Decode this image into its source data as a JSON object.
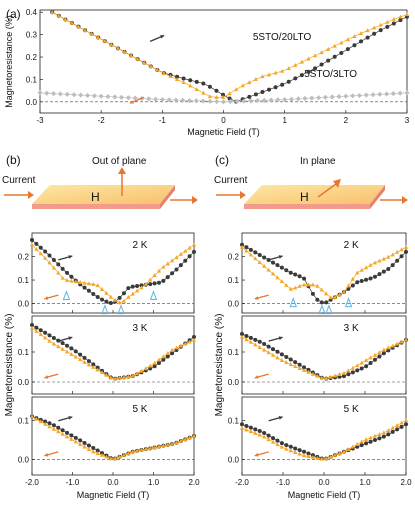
{
  "panels": [
    {
      "label": "(a)"
    },
    {
      "label": "(b)",
      "orientation": "Out of plane",
      "current": "Current",
      "field": "H"
    },
    {
      "label": "(c)",
      "orientation": "In plane",
      "current": "Current",
      "field": "H"
    }
  ],
  "chart_data": [
    {
      "type": "scatter",
      "panel": "(a)",
      "xlabel": "Magnetic Field (T)",
      "ylabel": "Magnetoresistance (%)",
      "xlim": [
        -3,
        3
      ],
      "ylim": [
        -0.05,
        0.41
      ],
      "xticks": [
        "-3",
        "-2",
        "-1",
        "0",
        "1",
        "2",
        "3"
      ],
      "yticks": [
        "0.0",
        "0.1",
        "0.2",
        "0.3",
        "0.4"
      ],
      "annotations": [
        "5STO/20LTO",
        "5STO/3LTO"
      ],
      "series": [
        {
          "color": "#3a3a3a",
          "x": [
            -2.8,
            -2.2,
            -1.6,
            -1.0,
            -0.6,
            -0.3,
            0,
            0.2,
            0.4,
            0.6,
            0.8,
            1.0,
            1.5,
            2.0,
            2.5,
            3.0
          ],
          "y": [
            0.4,
            0.31,
            0.22,
            0.13,
            0.1,
            0.08,
            0.03,
            0.0,
            0.02,
            0.04,
            0.06,
            0.08,
            0.15,
            0.23,
            0.31,
            0.38
          ]
        },
        {
          "color": "#f5a623",
          "x": [
            -2.8,
            -2.2,
            -1.6,
            -1.0,
            -0.6,
            -0.4,
            -0.2,
            0,
            0.3,
            0.6,
            1.0,
            1.6,
            2.2,
            2.8,
            3.0
          ],
          "y": [
            0.4,
            0.31,
            0.22,
            0.13,
            0.08,
            0.05,
            0.02,
            0.02,
            0.07,
            0.11,
            0.14,
            0.22,
            0.3,
            0.37,
            0.39
          ]
        },
        {
          "color": "#bdbdbd",
          "x": [
            -3,
            -2,
            -1,
            0,
            1,
            2,
            3
          ],
          "y": [
            0.04,
            0.025,
            0.01,
            0.0,
            0.01,
            0.025,
            0.04
          ]
        }
      ]
    },
    {
      "type": "scatter",
      "panel": "(b)",
      "temperature": "2 K",
      "xlim": [
        -2,
        2
      ],
      "ylim": [
        -0.04,
        0.3
      ],
      "yticks": [
        "0.0",
        "0.1",
        "0.2"
      ],
      "series": [
        {
          "color": "#3a3a3a",
          "x": [
            -2.0,
            -1.6,
            -1.2,
            -0.8,
            -0.4,
            -0.2,
            0,
            0.2,
            0.4,
            0.8,
            1.2,
            1.6,
            2.0
          ],
          "y": [
            0.27,
            0.21,
            0.14,
            0.08,
            0.03,
            0.01,
            0.0,
            0.03,
            0.07,
            0.08,
            0.09,
            0.15,
            0.22
          ]
        },
        {
          "color": "#f5a623",
          "x": [
            -2.0,
            -1.6,
            -1.2,
            -0.8,
            -0.4,
            -0.2,
            0,
            0.2,
            0.4,
            0.8,
            1.2,
            1.6,
            2.0
          ],
          "y": [
            0.25,
            0.18,
            0.1,
            0.09,
            0.08,
            0.05,
            0.02,
            0.0,
            0.03,
            0.08,
            0.15,
            0.2,
            0.25
          ]
        }
      ]
    },
    {
      "type": "scatter",
      "panel": "(b)",
      "temperature": "3 K",
      "xlim": [
        -2,
        2
      ],
      "ylim": [
        -0.04,
        0.22
      ],
      "yticks": [
        "0.0",
        "0.1"
      ],
      "series": [
        {
          "color": "#3a3a3a",
          "x": [
            -2.0,
            -1.5,
            -1.0,
            -0.5,
            0,
            0.5,
            1.0,
            1.5,
            2.0
          ],
          "y": [
            0.19,
            0.15,
            0.11,
            0.06,
            0.01,
            0.02,
            0.05,
            0.1,
            0.15
          ]
        },
        {
          "color": "#f5a623",
          "x": [
            -2.0,
            -1.5,
            -1.0,
            -0.5,
            0,
            0.5,
            1.0,
            1.5,
            2.0
          ],
          "y": [
            0.18,
            0.13,
            0.09,
            0.05,
            0.01,
            0.02,
            0.06,
            0.11,
            0.14
          ]
        }
      ]
    },
    {
      "type": "scatter",
      "panel": "(b)",
      "temperature": "5 K",
      "xlim": [
        -2,
        2
      ],
      "ylim": [
        -0.04,
        0.16
      ],
      "yticks": [
        "0.0",
        "0.1"
      ],
      "xlabel": "Magnetic Field (T)",
      "xticks": [
        "-2.0",
        "-1.0",
        "0.0",
        "1.0",
        "2.0"
      ],
      "series": [
        {
          "color": "#3a3a3a",
          "x": [
            -2.0,
            -1.5,
            -1.0,
            -0.5,
            0,
            0.5,
            1.0,
            1.5,
            2.0
          ],
          "y": [
            0.11,
            0.09,
            0.06,
            0.03,
            0.0,
            0.02,
            0.03,
            0.04,
            0.06
          ]
        },
        {
          "color": "#f5a623",
          "x": [
            -2.0,
            -1.5,
            -1.0,
            -0.5,
            0,
            0.5,
            1.0,
            1.5,
            2.0
          ],
          "y": [
            0.11,
            0.08,
            0.05,
            0.02,
            0.0,
            0.02,
            0.03,
            0.04,
            0.06
          ]
        }
      ]
    },
    {
      "type": "scatter",
      "panel": "(c)",
      "temperature": "2 K",
      "xlim": [
        -2,
        2
      ],
      "ylim": [
        -0.04,
        0.3
      ],
      "yticks": [
        "0.0",
        "0.1",
        "0.2"
      ],
      "series": [
        {
          "color": "#3a3a3a",
          "x": [
            -2.0,
            -1.6,
            -1.2,
            -0.8,
            -0.5,
            -0.2,
            0,
            0.2,
            0.5,
            0.8,
            1.2,
            1.6,
            2.0
          ],
          "y": [
            0.25,
            0.21,
            0.17,
            0.13,
            0.11,
            0.02,
            0.0,
            0.02,
            0.05,
            0.09,
            0.11,
            0.15,
            0.22
          ]
        },
        {
          "color": "#f5a623",
          "x": [
            -2.0,
            -1.6,
            -1.2,
            -0.8,
            -0.5,
            -0.2,
            0,
            0.2,
            0.5,
            0.8,
            1.2,
            1.6,
            2.0
          ],
          "y": [
            0.24,
            0.18,
            0.12,
            0.06,
            0.08,
            0.08,
            0.05,
            0.02,
            0.05,
            0.13,
            0.17,
            0.2,
            0.24
          ]
        }
      ]
    },
    {
      "type": "scatter",
      "panel": "(c)",
      "temperature": "3 K",
      "xlim": [
        -2,
        2
      ],
      "ylim": [
        -0.04,
        0.22
      ],
      "yticks": [
        "0.0",
        "0.1"
      ],
      "series": [
        {
          "color": "#3a3a3a",
          "x": [
            -2.0,
            -1.5,
            -1.0,
            -0.5,
            0,
            0.5,
            1.0,
            1.5,
            2.0
          ],
          "y": [
            0.16,
            0.13,
            0.09,
            0.05,
            0.01,
            0.02,
            0.05,
            0.1,
            0.14
          ]
        },
        {
          "color": "#f5a623",
          "x": [
            -2.0,
            -1.5,
            -1.0,
            -0.5,
            0,
            0.5,
            1.0,
            1.5,
            2.0
          ],
          "y": [
            0.15,
            0.11,
            0.07,
            0.04,
            0.01,
            0.03,
            0.07,
            0.11,
            0.14
          ]
        }
      ]
    },
    {
      "type": "scatter",
      "panel": "(c)",
      "temperature": "5 K",
      "xlim": [
        -2,
        2
      ],
      "ylim": [
        -0.04,
        0.16
      ],
      "yticks": [
        "0.0",
        "0.1"
      ],
      "xlabel": "Magnetic Field (T)",
      "xticks": [
        "-2.0",
        "-1.0",
        "0.0",
        "1.0",
        "2.0"
      ],
      "series": [
        {
          "color": "#3a3a3a",
          "x": [
            -2.0,
            -1.5,
            -1.0,
            -0.5,
            0,
            0.5,
            1.0,
            1.5,
            2.0
          ],
          "y": [
            0.09,
            0.07,
            0.04,
            0.02,
            0.0,
            0.02,
            0.04,
            0.06,
            0.09
          ]
        },
        {
          "color": "#f5a623",
          "x": [
            -2.0,
            -1.5,
            -1.0,
            -0.5,
            0,
            0.5,
            1.0,
            1.5,
            2.0
          ],
          "y": [
            0.08,
            0.06,
            0.03,
            0.01,
            0.0,
            0.02,
            0.05,
            0.07,
            0.1
          ]
        }
      ]
    }
  ],
  "shared_ylabel": "Magnetoresistance (%)"
}
